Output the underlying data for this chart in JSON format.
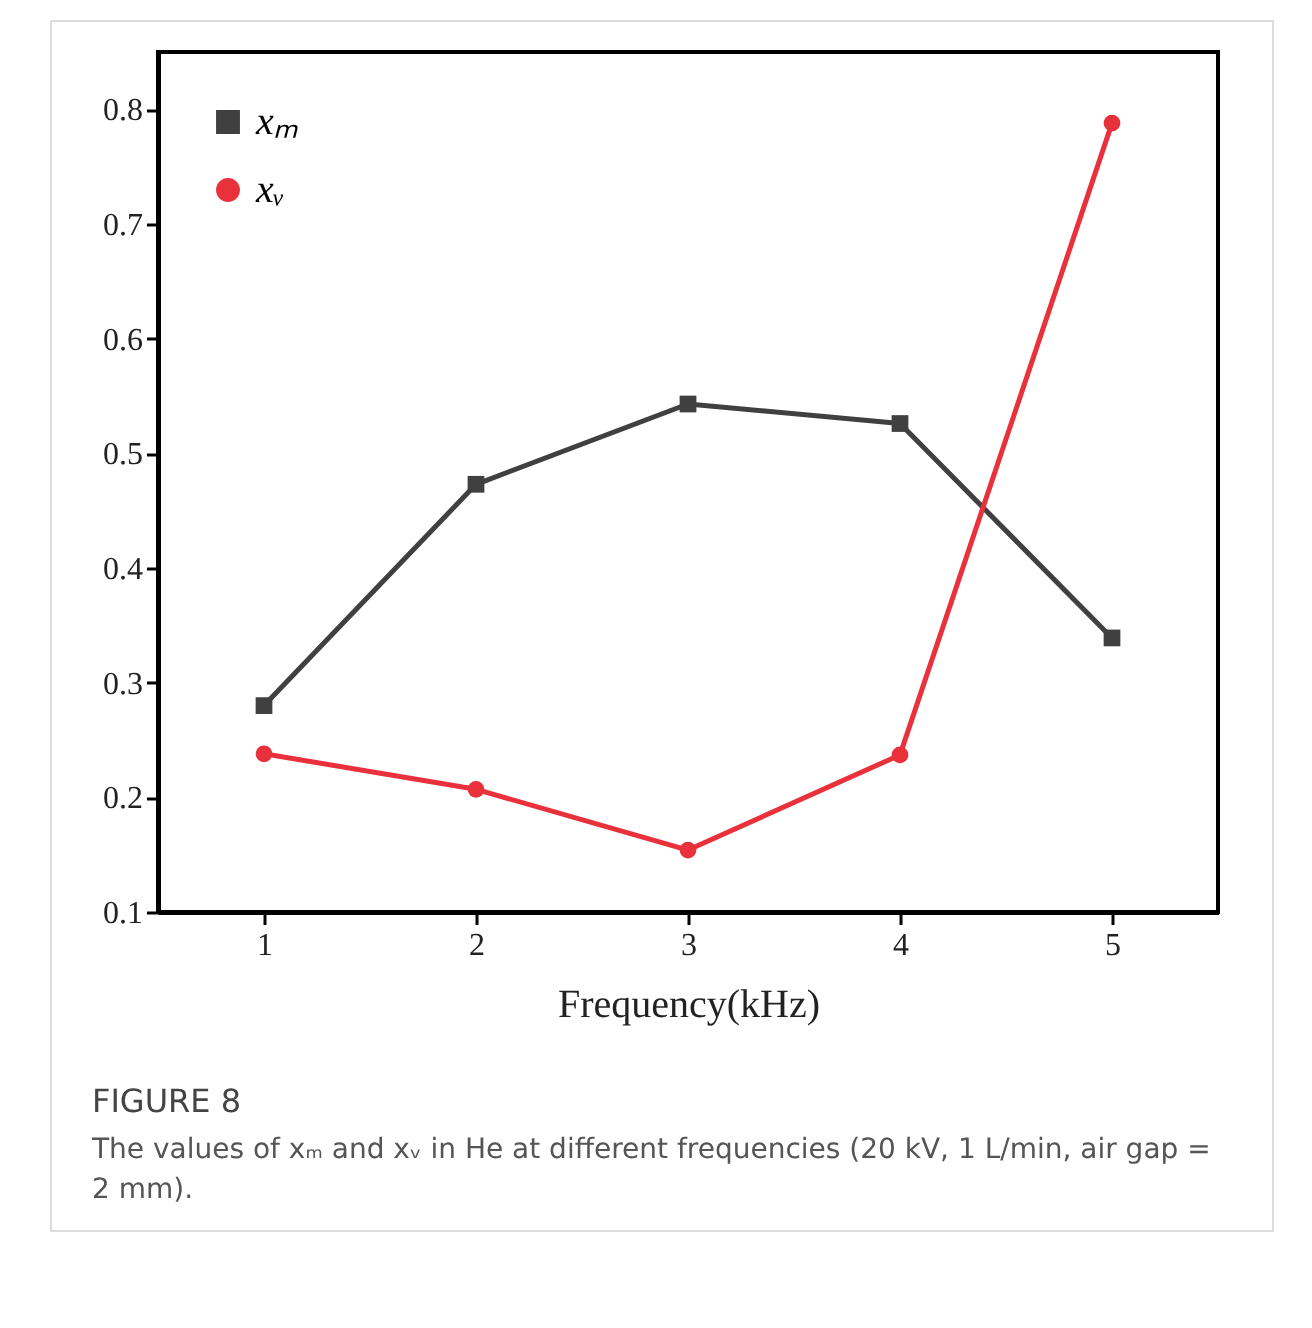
{
  "chart_data": {
    "type": "line",
    "xlabel": "Frequency(kHz)",
    "x": [
      1,
      2,
      3,
      4,
      5
    ],
    "series": [
      {
        "name": "xₘ",
        "color": "#404040",
        "marker": "square",
        "values": [
          0.28,
          0.473,
          0.543,
          0.526,
          0.339
        ]
      },
      {
        "name": "xᵥ",
        "color": "#e8313a",
        "marker": "circle",
        "values": [
          0.238,
          0.207,
          0.154,
          0.237,
          0.788
        ]
      }
    ],
    "xlim": [
      0.5,
      5.5
    ],
    "xticks": [
      1,
      2,
      3,
      4,
      5
    ],
    "ylim": [
      0.1,
      0.85
    ],
    "yticks": [
      0.1,
      0.2,
      0.3,
      0.4,
      0.5,
      0.6,
      0.7,
      0.8
    ],
    "grid": false,
    "legend": "top left",
    "annotations": [
      "FIGURE 8",
      "The values of xₘ and xᵥ in He at different frequencies (20 kV, 1 L/min, air gap = 2 mm)."
    ]
  }
}
